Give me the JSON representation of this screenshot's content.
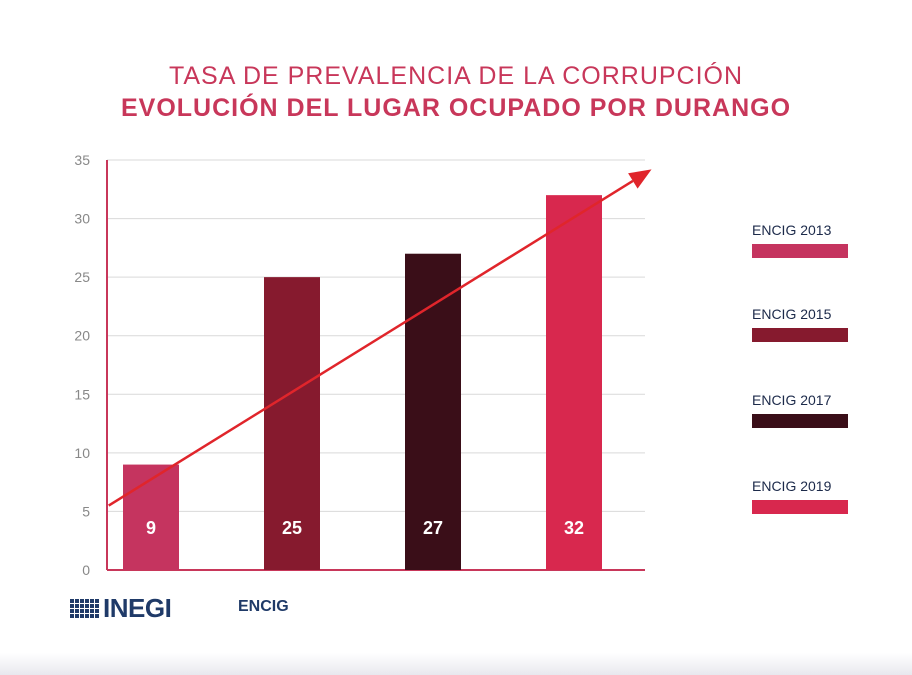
{
  "title_line1": "TASA DE PREVALENCIA DE LA CORRUPCIÓN",
  "title_line2": "EVOLUCIÓN DEL LUGAR OCUPADO POR DURANGO",
  "chart_data": {
    "type": "bar",
    "title": "TASA DE PREVALENCIA DE LA CORRUPCIÓN — EVOLUCIÓN DEL LUGAR OCUPADO POR DURANGO",
    "categories": [
      "ENCIG 2013",
      "ENCIG 2015",
      "ENCIG 2017",
      "ENCIG 2019"
    ],
    "values": [
      9,
      25,
      27,
      32
    ],
    "value_labels": [
      "9",
      "25",
      "27",
      "32"
    ],
    "colors": [
      "#c5345f",
      "#861a2e",
      "#3a0e18",
      "#d8284e"
    ],
    "ylim": [
      0,
      35
    ],
    "yticks": [
      0,
      5,
      10,
      15,
      20,
      25,
      30,
      35
    ],
    "xlabel": "",
    "ylabel": "",
    "grid": true,
    "legend_position": "right",
    "trend_arrow": {
      "from": [
        -0.3,
        5.5
      ],
      "to": [
        3.55,
        34.2
      ],
      "color": "#e0252b"
    }
  },
  "legend": [
    {
      "label": "ENCIG 2013",
      "color": "#c5345f"
    },
    {
      "label": "ENCIG 2015",
      "color": "#861a2e"
    },
    {
      "label": "ENCIG 2017",
      "color": "#3a0e18"
    },
    {
      "label": "ENCIG 2019",
      "color": "#d8284e"
    }
  ],
  "footer": {
    "logo_text": "INEGI",
    "source_text": "ENCIG"
  }
}
